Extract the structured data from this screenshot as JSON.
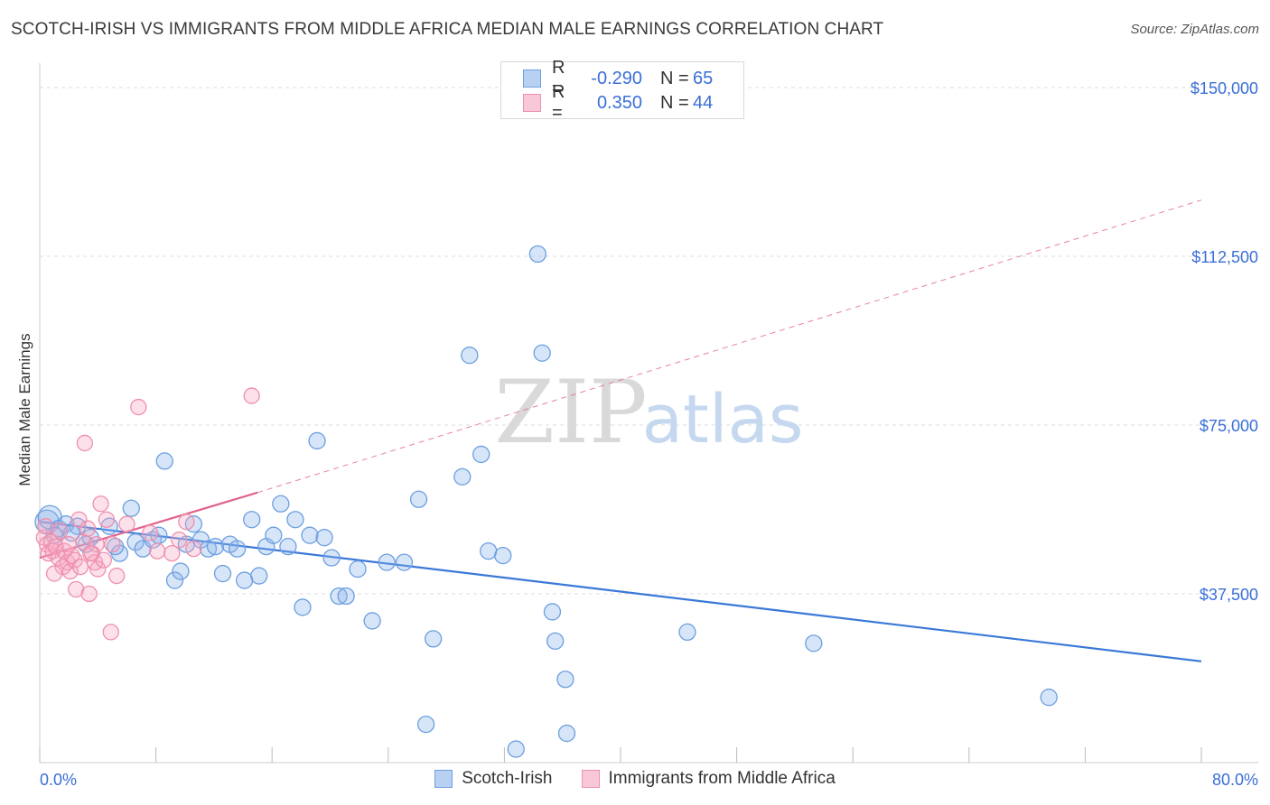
{
  "title": "SCOTCH-IRISH VS IMMIGRANTS FROM MIDDLE AFRICA MEDIAN MALE EARNINGS CORRELATION CHART",
  "source": "Source: ZipAtlas.com",
  "watermark": {
    "zip": "ZIP",
    "atlas": "atlas"
  },
  "colors": {
    "blue": "#3a78d8",
    "blue_fill": "rgba(140,180,235,0.35)",
    "blue_stroke": "#6c9fe0",
    "pink": "#e0638c",
    "pink_fill": "rgba(245,170,195,0.35)",
    "pink_stroke": "#ee8fae",
    "label_blue": "#3a6fd8",
    "grid": "#dddddd"
  },
  "legend": {
    "rows": [
      {
        "label": "R =",
        "r": "-0.290",
        "n_label": "N =",
        "n": "65",
        "series": "blue"
      },
      {
        "label": "R =",
        "r": "0.350",
        "n_label": "N =",
        "n": "44",
        "series": "pink"
      }
    ]
  },
  "bottom_legend": {
    "items": [
      {
        "label": "Scotch-Irish",
        "series": "blue"
      },
      {
        "label": "Immigrants from Middle Africa",
        "series": "pink"
      }
    ]
  },
  "chart_data": {
    "type": "scatter",
    "title": "SCOTCH-IRISH VS IMMIGRANTS FROM MIDDLE AFRICA MEDIAN MALE EARNINGS CORRELATION CHART",
    "xlabel": "",
    "ylabel": "Median Male Earnings",
    "xlim": [
      0,
      80
    ],
    "ylim": [
      0,
      155000
    ],
    "x_tick_labels": [
      "0.0%",
      "80.0%"
    ],
    "y_ticks": [
      37500,
      75000,
      112500,
      150000
    ],
    "y_tick_labels": [
      "$37,500",
      "$75,000",
      "$112,500",
      "$150,000"
    ],
    "grid": true,
    "series": [
      {
        "name": "Scotch-Irish",
        "color": "blue",
        "points": [
          [
            0.5,
            53500
          ],
          [
            0.7,
            54500
          ],
          [
            1.3,
            52000
          ],
          [
            1.8,
            53000
          ],
          [
            2.6,
            52500
          ],
          [
            3.2,
            48500
          ],
          [
            3.5,
            50000
          ],
          [
            4.8,
            52500
          ],
          [
            5.5,
            46500
          ],
          [
            6.3,
            56500
          ],
          [
            6.6,
            49000
          ],
          [
            7.1,
            47500
          ],
          [
            7.8,
            49500
          ],
          [
            8.2,
            50500
          ],
          [
            8.6,
            67000
          ],
          [
            9.3,
            40500
          ],
          [
            9.7,
            42500
          ],
          [
            10.1,
            48500
          ],
          [
            10.6,
            53000
          ],
          [
            11.1,
            49500
          ],
          [
            11.6,
            47500
          ],
          [
            12.1,
            48000
          ],
          [
            12.6,
            42000
          ],
          [
            13.1,
            48500
          ],
          [
            13.6,
            47500
          ],
          [
            14.1,
            40500
          ],
          [
            14.6,
            54000
          ],
          [
            15.1,
            41500
          ],
          [
            15.6,
            48000
          ],
          [
            16.1,
            50500
          ],
          [
            16.6,
            57500
          ],
          [
            17.1,
            48000
          ],
          [
            17.6,
            54000
          ],
          [
            18.1,
            34500
          ],
          [
            18.6,
            50500
          ],
          [
            19.1,
            71500
          ],
          [
            19.6,
            50000
          ],
          [
            20.1,
            45500
          ],
          [
            20.6,
            37000
          ],
          [
            21.1,
            37000
          ],
          [
            21.9,
            43000
          ],
          [
            22.9,
            31500
          ],
          [
            23.9,
            44500
          ],
          [
            25.1,
            44500
          ],
          [
            26.1,
            58500
          ],
          [
            26.6,
            8500
          ],
          [
            27.1,
            27500
          ],
          [
            29.1,
            63500
          ],
          [
            29.6,
            90500
          ],
          [
            30.4,
            68500
          ],
          [
            30.9,
            47000
          ],
          [
            31.9,
            46000
          ],
          [
            32.8,
            3000
          ],
          [
            34.3,
            113000
          ],
          [
            34.6,
            91000
          ],
          [
            35.3,
            33500
          ],
          [
            35.5,
            27000
          ],
          [
            36.2,
            18500
          ],
          [
            36.3,
            6500
          ],
          [
            44.6,
            29000
          ],
          [
            53.3,
            26500
          ],
          [
            69.5,
            14500
          ],
          [
            1.0,
            50500
          ],
          [
            2.2,
            51000
          ],
          [
            5.2,
            48000
          ]
        ],
        "trend": {
          "x": [
            0,
            80
          ],
          "y": [
            53500,
            22500
          ]
        }
      },
      {
        "name": "Immigrants from Middle Africa",
        "color": "pink",
        "points": [
          [
            0.3,
            50000
          ],
          [
            0.5,
            48500
          ],
          [
            0.6,
            46500
          ],
          [
            0.8,
            49000
          ],
          [
            0.9,
            47000
          ],
          [
            1.1,
            48000
          ],
          [
            1.3,
            45500
          ],
          [
            1.4,
            51500
          ],
          [
            1.6,
            43500
          ],
          [
            1.7,
            47000
          ],
          [
            1.9,
            44500
          ],
          [
            2.1,
            42500
          ],
          [
            2.2,
            46000
          ],
          [
            2.4,
            45000
          ],
          [
            2.5,
            38500
          ],
          [
            2.7,
            54000
          ],
          [
            2.8,
            43500
          ],
          [
            3.0,
            49000
          ],
          [
            3.1,
            71000
          ],
          [
            3.3,
            52000
          ],
          [
            3.4,
            37500
          ],
          [
            3.6,
            46500
          ],
          [
            3.8,
            44500
          ],
          [
            3.9,
            48500
          ],
          [
            4.0,
            43000
          ],
          [
            4.2,
            57500
          ],
          [
            4.4,
            45000
          ],
          [
            4.6,
            54000
          ],
          [
            4.9,
            29000
          ],
          [
            5.0,
            48500
          ],
          [
            5.3,
            41500
          ],
          [
            6.0,
            53000
          ],
          [
            6.8,
            79000
          ],
          [
            7.6,
            51000
          ],
          [
            8.1,
            47000
          ],
          [
            9.1,
            46500
          ],
          [
            9.6,
            49500
          ],
          [
            10.1,
            53500
          ],
          [
            10.6,
            47500
          ],
          [
            14.6,
            81500
          ],
          [
            1.0,
            42000
          ],
          [
            2.0,
            48500
          ],
          [
            0.4,
            52500
          ],
          [
            3.5,
            46500
          ]
        ],
        "trend": {
          "x": [
            0,
            15
          ],
          "y": [
            45500,
            60000
          ]
        },
        "trend_extended": {
          "x": [
            15,
            80
          ],
          "y": [
            60000,
            125000
          ]
        }
      }
    ]
  }
}
